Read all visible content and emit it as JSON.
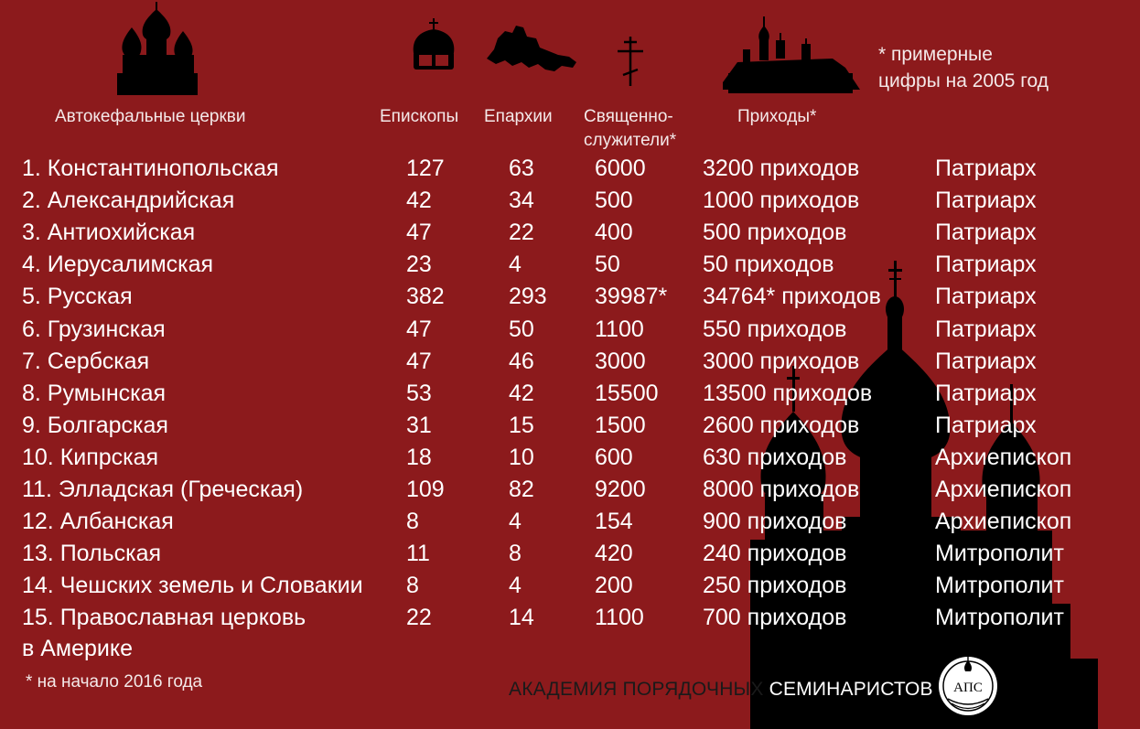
{
  "headers": {
    "churches": "Автокефальные церкви",
    "bishops": "Епископы",
    "eparchies": "Епархии",
    "clergy_line1": "Священно-",
    "clergy_line2": "служители*",
    "parishes": "Приходы*"
  },
  "note_top": {
    "line1": "* примерные",
    "line2": "цифры на 2005 год"
  },
  "rows": [
    {
      "name": "1. Константинопольская",
      "bishops": "127",
      "eparchies": "63",
      "clergy": "6000",
      "parishes": "3200 приходов",
      "head": "Патриарх"
    },
    {
      "name": "2. Александрийская",
      "bishops": "42",
      "eparchies": "34",
      "clergy": "500",
      "parishes": "1000 приходов",
      "head": "Патриарх"
    },
    {
      "name": "3. Антиохийская",
      "bishops": "47",
      "eparchies": "22",
      "clergy": "400",
      "parishes": "500 приходов",
      "head": "Патриарх"
    },
    {
      "name": "4. Иерусалимская",
      "bishops": "23",
      "eparchies": "4",
      "clergy": "50",
      "parishes": "50 приходов",
      "head": "Патриарх"
    },
    {
      "name": "5. Русская",
      "bishops": "382",
      "eparchies": "293",
      "clergy": " 39987*",
      "parishes": "34764* приходов",
      "head": "Патриарх"
    },
    {
      "name": "6. Грузинская",
      "bishops": "47",
      "eparchies": "50",
      "clergy": "1100",
      "parishes": "550 приходов",
      "head": "Патриарх"
    },
    {
      "name": "7. Сербская",
      "bishops": "47",
      "eparchies": "46",
      "clergy": "3000",
      "parishes": "3000 приходов",
      "head": "Патриарх"
    },
    {
      "name": "8. Румынская",
      "bishops": "53",
      "eparchies": "42",
      "clergy": "15500",
      "parishes": "13500 приходов",
      "head": "Патриарх"
    },
    {
      "name": "9. Болгарская",
      "bishops": "31",
      "eparchies": "15",
      "clergy": "1500",
      "parishes": "2600 приходов",
      "head": "Патриарх"
    },
    {
      "name": "10. Кипрская",
      "bishops": "18",
      "eparchies": "10",
      "clergy": "600",
      "parishes": "630 приходов",
      "head": "Архиепископ"
    },
    {
      "name": "11. Элладская (Греческая)",
      "bishops": "109",
      "eparchies": "82",
      "clergy": "9200",
      "parishes": "8000 приходов",
      "head": "Архиепископ"
    },
    {
      "name": "12. Албанская",
      "bishops": "8",
      "eparchies": "4",
      "clergy": "154",
      "parishes": "900 приходов",
      "head": "Архиепископ"
    },
    {
      "name": "13. Польская",
      "bishops": "11",
      "eparchies": "8",
      "clergy": "420",
      "parishes": "240 приходов",
      "head": "Митрополит"
    },
    {
      "name": "14. Чешских земель и Словакии",
      "bishops": "8",
      "eparchies": "4",
      "clergy": "200",
      "parishes": "250 приходов",
      "head": "Митрополит"
    },
    {
      "name": "15. Православная церковь",
      "bishops": "22",
      "eparchies": "14",
      "clergy": "1100",
      "parishes": "700 приходов",
      "head": "Митрополит"
    }
  ],
  "row15_cont": "в Америке",
  "footnote": "* на начало 2016 года",
  "academy": {
    "part1": "АКАДЕМИЯ ПОРЯДОЧНЫХ ",
    "part2": "СЕМИНАРИСТОВ"
  },
  "logo_text": "АПС",
  "colors": {
    "background": "#8c1a1c",
    "text": "#ffffff",
    "silhouette": "#000000"
  },
  "icons": [
    "church-domes-icon",
    "mitre-icon",
    "map-icon",
    "orthodox-cross-icon",
    "monastery-icon",
    "church-silhouette-icon",
    "aps-logo-icon"
  ]
}
